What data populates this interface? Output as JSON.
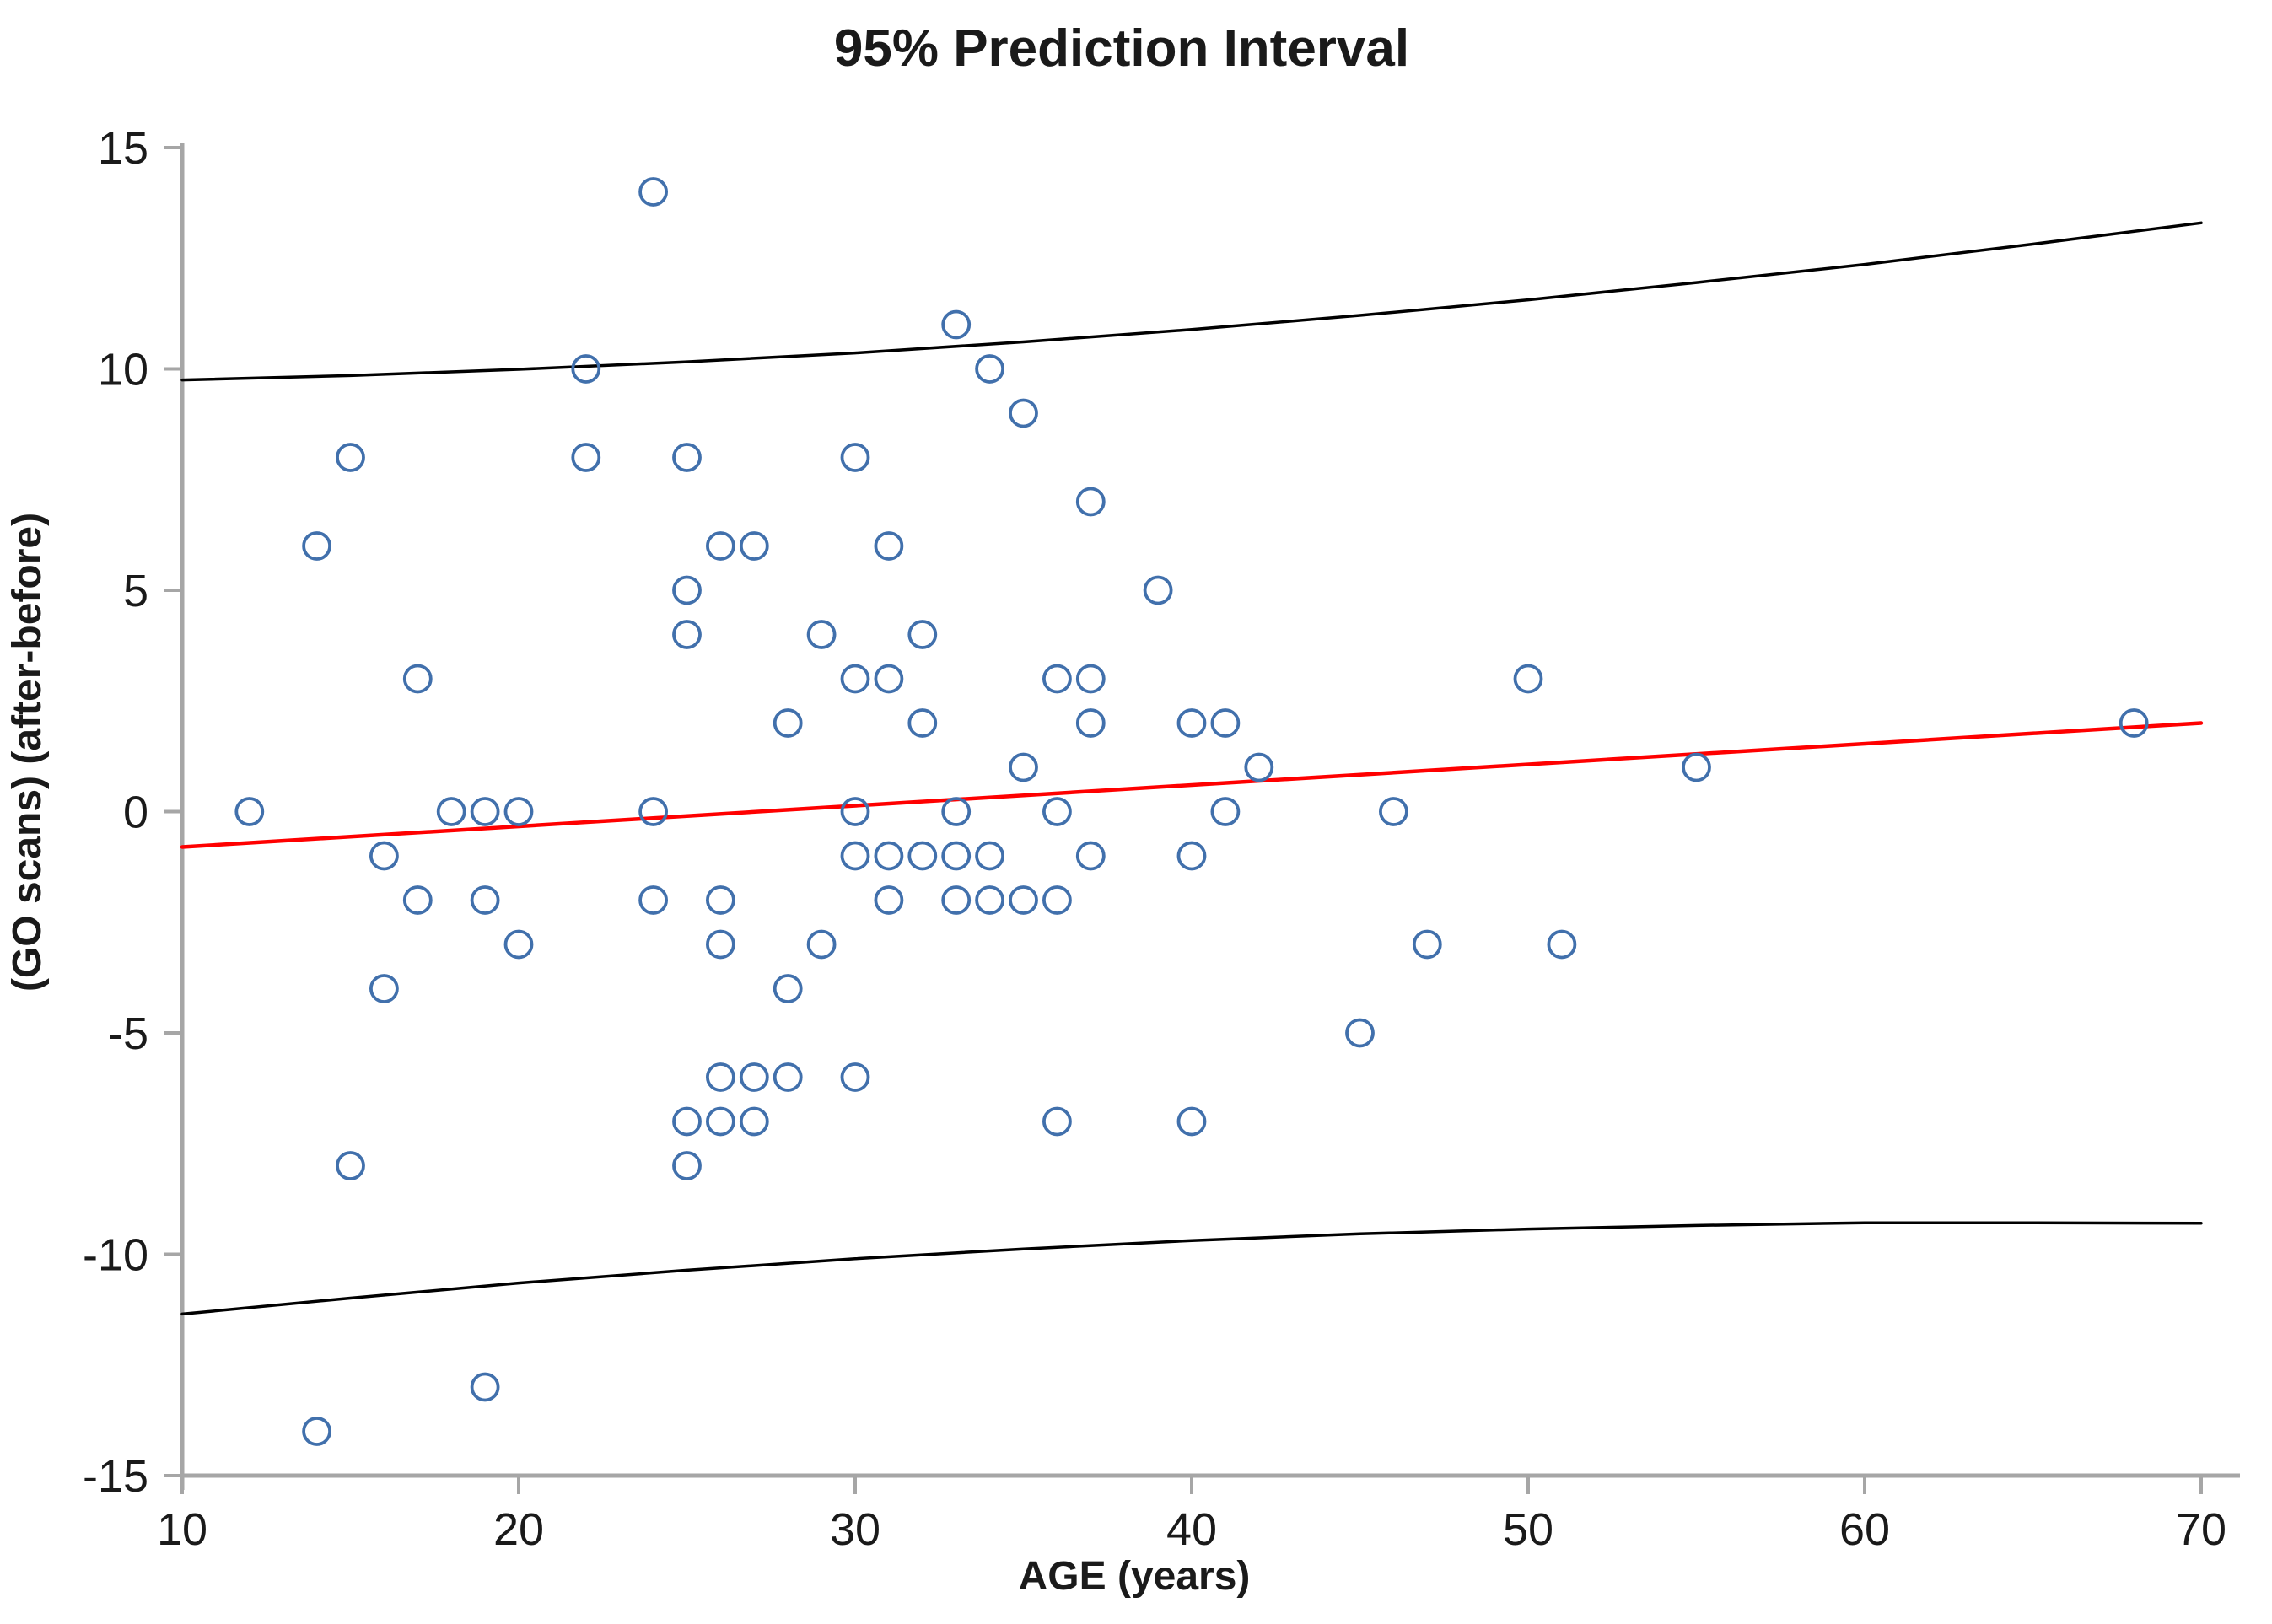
{
  "chart_data": {
    "type": "scatter",
    "title": "95% Prediction Interval",
    "xlabel": "AGE (years)",
    "ylabel": "(GO scans) (after-before)",
    "xlim": [
      10,
      70
    ],
    "ylim": [
      -15,
      15
    ],
    "x_ticks": [
      10,
      20,
      30,
      40,
      50,
      60,
      70
    ],
    "y_ticks": [
      15,
      10,
      5,
      0,
      -5,
      -10,
      -15
    ],
    "grid": false,
    "legend_position": "none",
    "marker_style": "open-circle",
    "colors": {
      "scatter_stroke": "#4170AC",
      "regression_line": "#FF0000",
      "prediction_bound": "#000000",
      "axis_line": "#A6A6A6",
      "text": "#1a1a1a"
    },
    "series": [
      {
        "name": "observations",
        "type": "scatter",
        "points": [
          [
            12,
            0
          ],
          [
            14,
            6
          ],
          [
            14,
            -14
          ],
          [
            15,
            8
          ],
          [
            15,
            -8
          ],
          [
            16,
            -1
          ],
          [
            16,
            -4
          ],
          [
            17,
            3
          ],
          [
            17,
            -2
          ],
          [
            18,
            0
          ],
          [
            19,
            0
          ],
          [
            19,
            -2
          ],
          [
            19,
            -13
          ],
          [
            20,
            0
          ],
          [
            20,
            -3
          ],
          [
            22,
            10
          ],
          [
            22,
            8
          ],
          [
            24,
            14
          ],
          [
            24,
            0
          ],
          [
            24,
            -2
          ],
          [
            25,
            8
          ],
          [
            25,
            5
          ],
          [
            25,
            4
          ],
          [
            25,
            -7
          ],
          [
            25,
            -8
          ],
          [
            26,
            6
          ],
          [
            26,
            -2
          ],
          [
            26,
            -3
          ],
          [
            26,
            -6
          ],
          [
            26,
            -7
          ],
          [
            27,
            6
          ],
          [
            27,
            -6
          ],
          [
            27,
            -7
          ],
          [
            28,
            2
          ],
          [
            28,
            -4
          ],
          [
            28,
            -6
          ],
          [
            29,
            4
          ],
          [
            29,
            -3
          ],
          [
            30,
            8
          ],
          [
            30,
            3
          ],
          [
            30,
            0
          ],
          [
            30,
            -1
          ],
          [
            30,
            -6
          ],
          [
            31,
            6
          ],
          [
            31,
            3
          ],
          [
            31,
            -1
          ],
          [
            31,
            -2
          ],
          [
            32,
            4
          ],
          [
            32,
            2
          ],
          [
            32,
            -1
          ],
          [
            33,
            11
          ],
          [
            33,
            0
          ],
          [
            33,
            -1
          ],
          [
            33,
            -2
          ],
          [
            34,
            10
          ],
          [
            34,
            -1
          ],
          [
            34,
            -2
          ],
          [
            35,
            9
          ],
          [
            35,
            1
          ],
          [
            35,
            -2
          ],
          [
            36,
            3
          ],
          [
            36,
            0
          ],
          [
            36,
            -2
          ],
          [
            36,
            -7
          ],
          [
            37,
            7
          ],
          [
            37,
            3
          ],
          [
            37,
            2
          ],
          [
            37,
            -1
          ],
          [
            39,
            5
          ],
          [
            40,
            2
          ],
          [
            40,
            -1
          ],
          [
            40,
            -7
          ],
          [
            41,
            2
          ],
          [
            41,
            0
          ],
          [
            42,
            1
          ],
          [
            45,
            -5
          ],
          [
            46,
            0
          ],
          [
            47,
            -3
          ],
          [
            50,
            3
          ],
          [
            51,
            -3
          ],
          [
            55,
            1
          ],
          [
            68,
            2
          ]
        ]
      },
      {
        "name": "regression-line",
        "type": "line",
        "points": [
          [
            10,
            -0.8
          ],
          [
            70,
            2.0
          ]
        ]
      },
      {
        "name": "upper-95-prediction-bound",
        "type": "line",
        "points": [
          [
            10,
            9.75
          ],
          [
            15,
            9.85
          ],
          [
            20,
            9.99
          ],
          [
            25,
            10.16
          ],
          [
            30,
            10.36
          ],
          [
            35,
            10.61
          ],
          [
            40,
            10.89
          ],
          [
            45,
            11.21
          ],
          [
            50,
            11.56
          ],
          [
            55,
            11.95
          ],
          [
            60,
            12.36
          ],
          [
            65,
            12.82
          ],
          [
            70,
            13.3
          ]
        ]
      },
      {
        "name": "lower-95-prediction-bound",
        "type": "line",
        "points": [
          [
            10,
            -11.35
          ],
          [
            15,
            -10.99
          ],
          [
            20,
            -10.65
          ],
          [
            25,
            -10.36
          ],
          [
            30,
            -10.1
          ],
          [
            35,
            -9.88
          ],
          [
            40,
            -9.69
          ],
          [
            45,
            -9.54
          ],
          [
            50,
            -9.43
          ],
          [
            55,
            -9.35
          ],
          [
            60,
            -9.29
          ],
          [
            65,
            -9.29
          ],
          [
            70,
            -9.3
          ]
        ]
      }
    ]
  }
}
